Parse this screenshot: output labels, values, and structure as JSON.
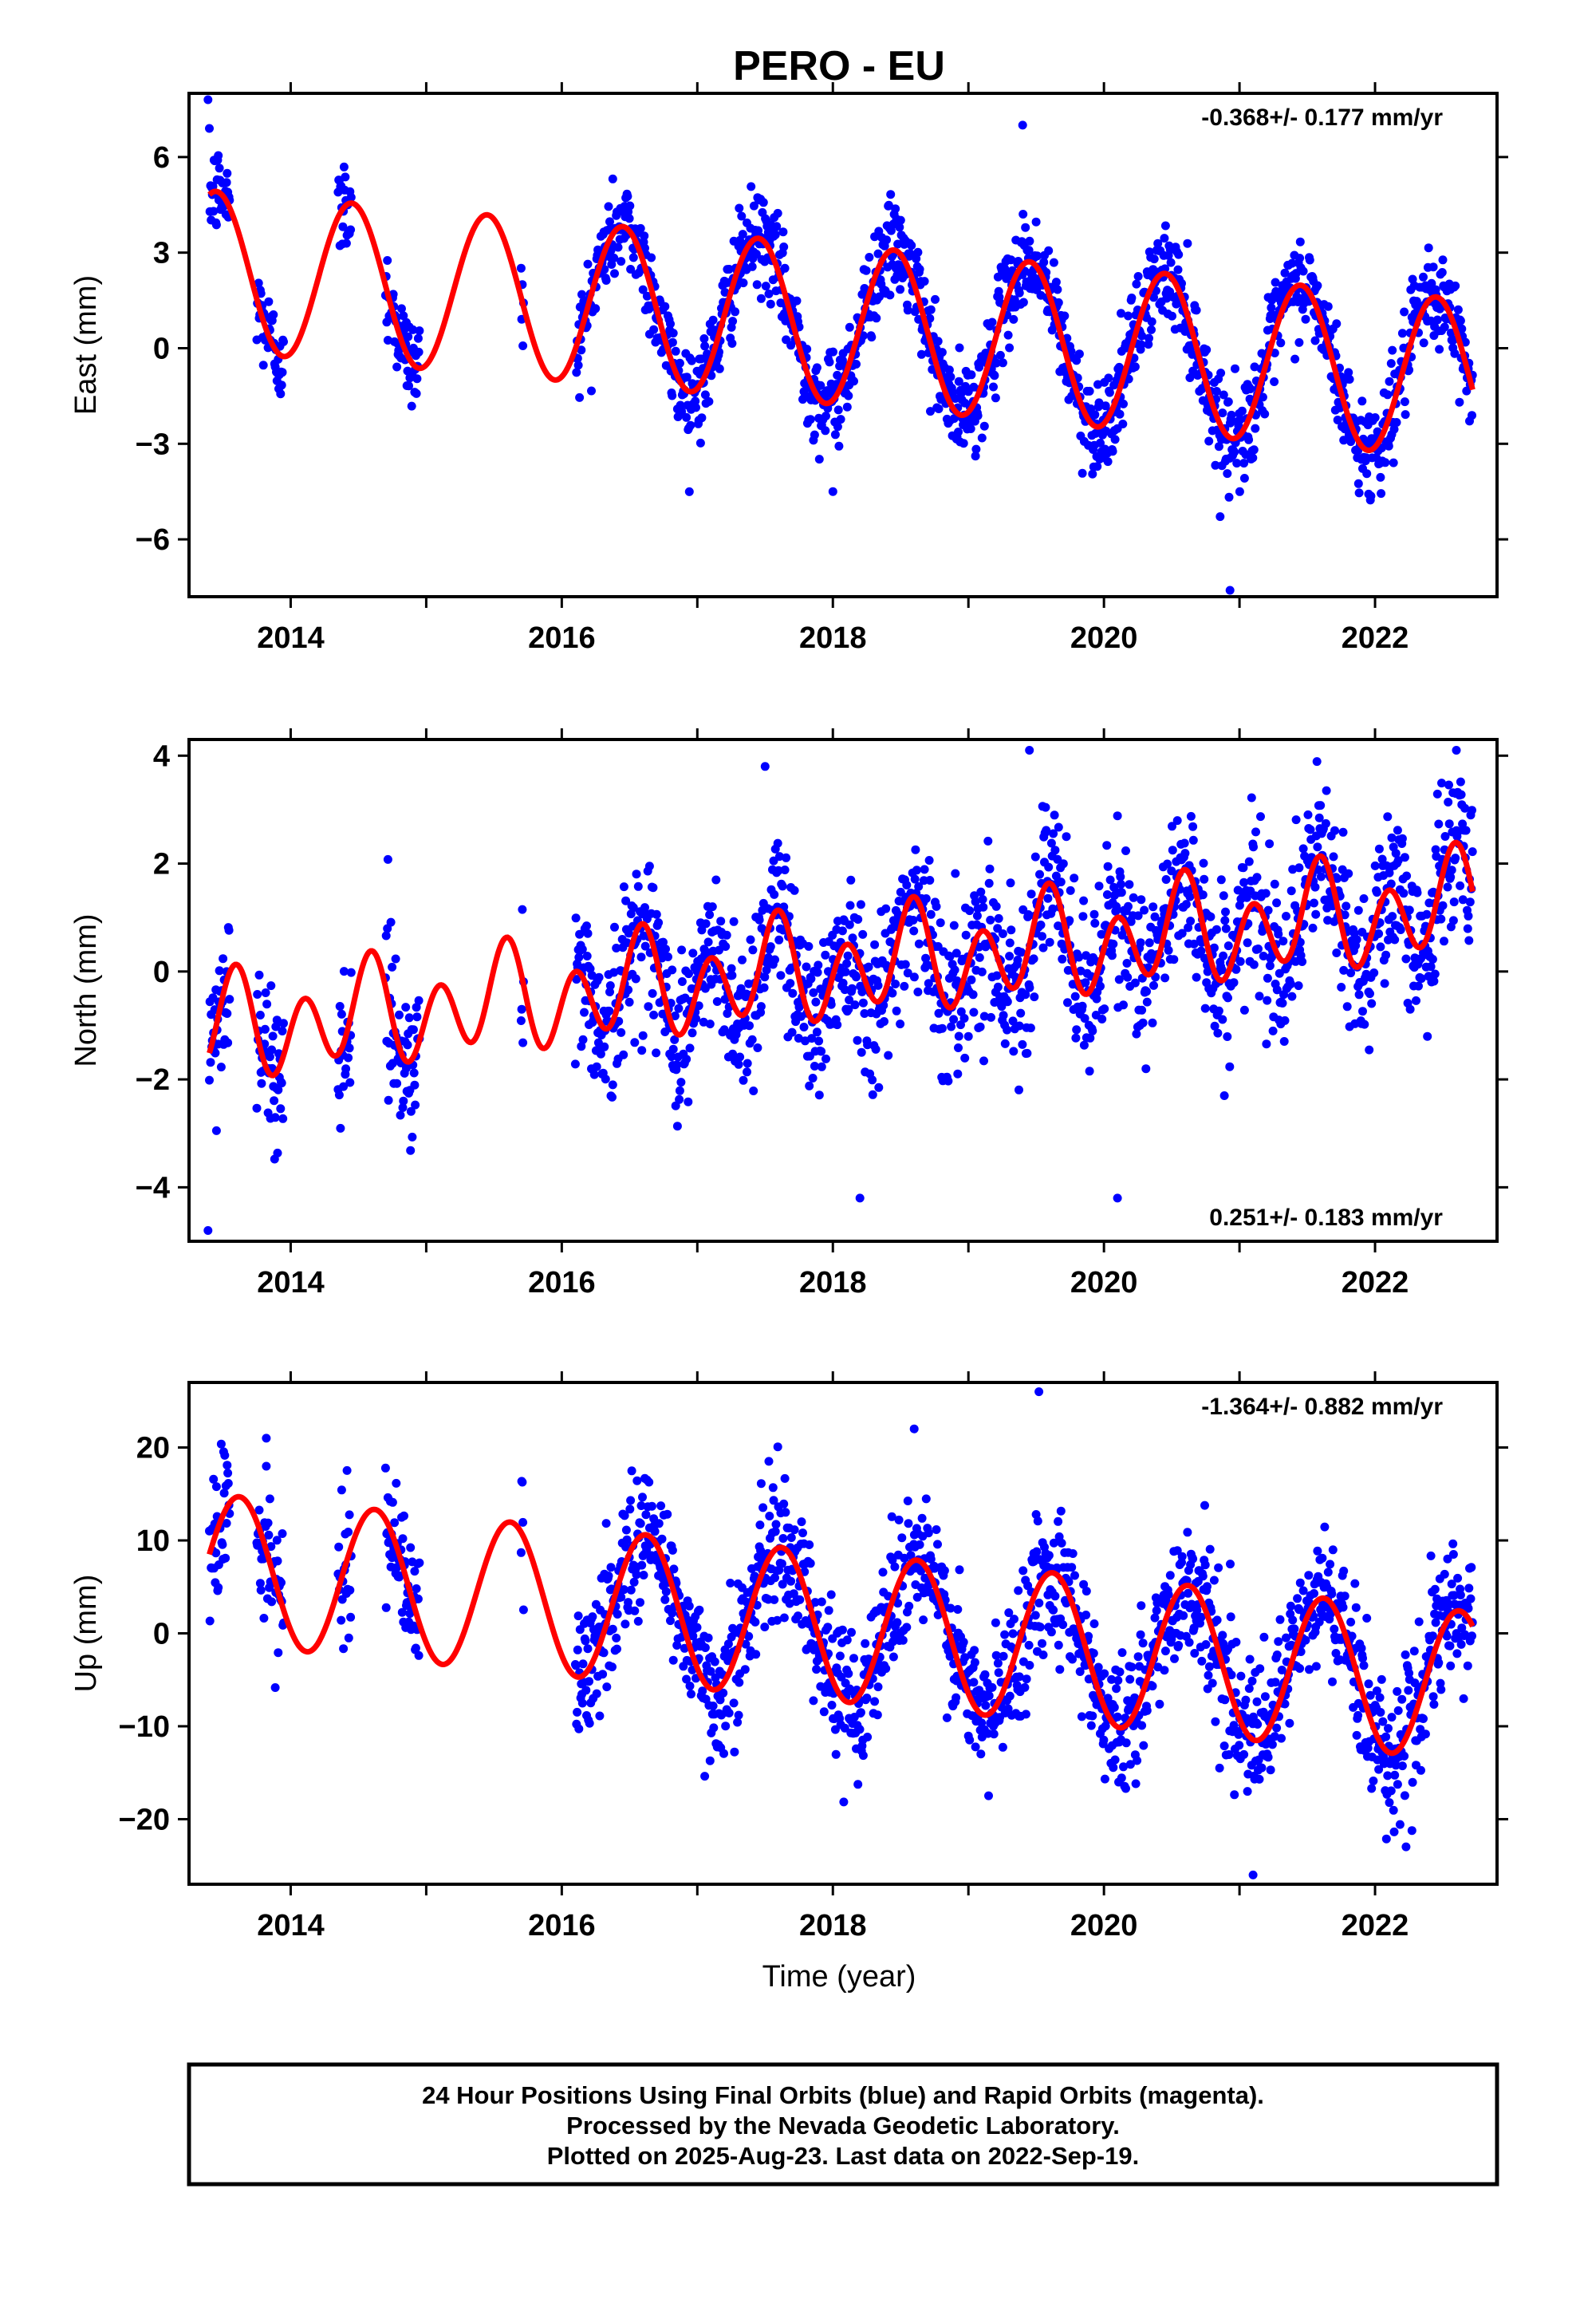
{
  "title": "PERO - EU",
  "xlabel": "Time (year)",
  "footer": [
    "24 Hour Positions Using Final Orbits (blue) and Rapid Orbits (magenta).",
    "Processed by the Nevada Geodetic Laboratory.",
    "Plotted on 2025-Aug-23. Last data on 2022-Sep-19."
  ],
  "colors": {
    "observations": "#0000ff",
    "model": "#ff0000",
    "frame": "#000000"
  },
  "chart_data": [
    {
      "type": "scatter",
      "component": "east",
      "ylabel": "East (mm)",
      "rate_label": "-0.368+/- 0.177 mm/yr",
      "rate_position": "top-right",
      "xlim": [
        2013.25,
        2022.9
      ],
      "ylim": [
        -7.8,
        8.0
      ],
      "xticks": [
        2014,
        2016,
        2018,
        2020,
        2022
      ],
      "xtick_labels": [
        "2014",
        "2016",
        "2018",
        "2020",
        "2022"
      ],
      "yticks": [
        -6,
        -3,
        0,
        3,
        6
      ],
      "ytick_labels": [
        "−6",
        "−3",
        "0",
        "3",
        "6"
      ],
      "grid": false,
      "model": {
        "offset": 2.44,
        "rate": -0.368,
        "annual_amp": 2.5,
        "annual_peak": 0.45,
        "semiannual_amp": 0.0,
        "semiannual_phase": 0.0
      },
      "noise_sd": 0.75,
      "data_segments": [
        [
          2013.4,
          2013.55
        ],
        [
          2013.75,
          2013.95
        ],
        [
          2014.35,
          2014.45
        ],
        [
          2014.7,
          2014.95
        ],
        [
          2015.7,
          2015.72
        ],
        [
          2016.1,
          2022.72
        ]
      ],
      "outliers": [
        [
          2013.39,
          7.8
        ],
        [
          2020.93,
          -7.6
        ],
        [
          2018.0,
          -4.5
        ],
        [
          2019.4,
          7.0
        ]
      ]
    },
    {
      "type": "scatter",
      "component": "north",
      "ylabel": "North (mm)",
      "rate_label": "0.251+/- 0.183 mm/yr",
      "rate_position": "bottom-right",
      "xlim": [
        2013.25,
        2022.9
      ],
      "ylim": [
        -5.0,
        4.3
      ],
      "xticks": [
        2014,
        2016,
        2018,
        2020,
        2022
      ],
      "xtick_labels": [
        "2014",
        "2016",
        "2018",
        "2020",
        "2022"
      ],
      "yticks": [
        -4,
        -2,
        0,
        2,
        4
      ],
      "ytick_labels": [
        "−4",
        "−2",
        "0",
        "2",
        "4"
      ],
      "grid": false,
      "model": {
        "offset": -1.1,
        "rate": 0.251,
        "annual_amp": 0.4,
        "annual_peak": 0.55,
        "semiannual_amp": 0.8,
        "semiannual_phase": 0.6
      },
      "noise_sd": 0.75,
      "data_segments": [
        [
          2013.4,
          2013.55
        ],
        [
          2013.75,
          2013.95
        ],
        [
          2014.35,
          2014.45
        ],
        [
          2014.7,
          2014.95
        ],
        [
          2015.7,
          2015.72
        ],
        [
          2016.1,
          2022.72
        ]
      ],
      "outliers": [
        [
          2013.39,
          -4.8
        ],
        [
          2019.45,
          4.1
        ],
        [
          2022.6,
          4.1
        ],
        [
          2017.5,
          3.8
        ],
        [
          2020.1,
          -4.2
        ],
        [
          2018.2,
          -4.2
        ]
      ]
    },
    {
      "type": "scatter",
      "component": "up",
      "ylabel": "Up (mm)",
      "rate_label": "-1.364+/- 0.882 mm/yr",
      "rate_position": "top-right",
      "xlim": [
        2013.25,
        2022.9
      ],
      "ylim": [
        -27,
        27
      ],
      "xticks": [
        2014,
        2016,
        2018,
        2020,
        2022
      ],
      "xtick_labels": [
        "2014",
        "2016",
        "2018",
        "2020",
        "2022"
      ],
      "yticks": [
        -20,
        -10,
        0,
        10,
        20
      ],
      "ytick_labels": [
        "−20",
        "−10",
        "0",
        "10",
        "20"
      ],
      "grid": false,
      "model": {
        "offset": 7.0,
        "rate": -1.364,
        "annual_amp": 8.0,
        "annual_peak": 0.62,
        "semiannual_amp": 0.0,
        "semiannual_phase": 0.0
      },
      "noise_sd": 3.8,
      "data_segments": [
        [
          2013.4,
          2013.55
        ],
        [
          2013.75,
          2013.95
        ],
        [
          2014.35,
          2014.45
        ],
        [
          2014.7,
          2014.95
        ],
        [
          2015.7,
          2015.72
        ],
        [
          2016.1,
          2022.72
        ]
      ],
      "outliers": [
        [
          2019.52,
          26.0
        ],
        [
          2021.1,
          -26.0
        ],
        [
          2018.6,
          22.0
        ],
        [
          2013.82,
          21.0
        ]
      ]
    }
  ]
}
